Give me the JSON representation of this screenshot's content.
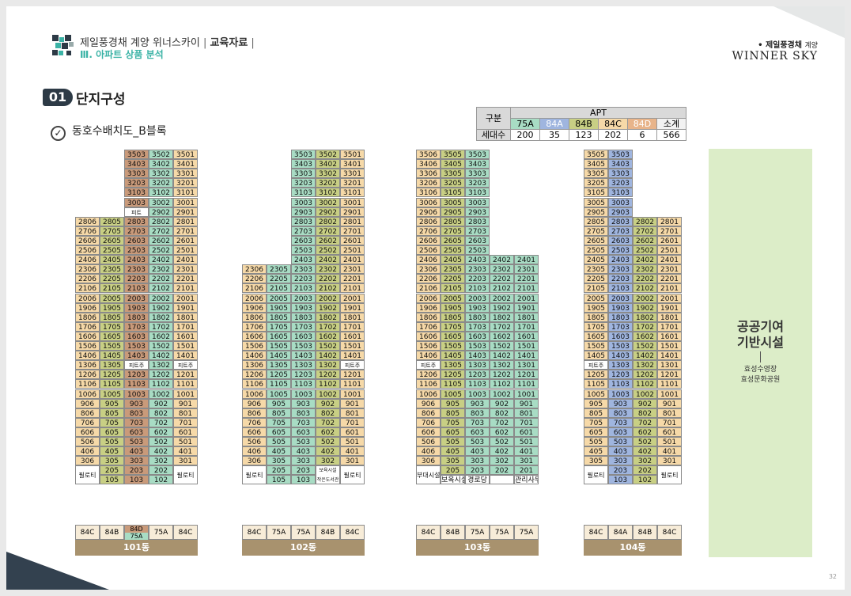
{
  "header": {
    "title": "제일풍경채 계양 위너스카이",
    "tag": "교육자료",
    "subtitle": "Ⅲ.  아파트 상품 분석",
    "brand_top": "제일풍경채",
    "brand_top_small": "계양",
    "brand_bottom": "WINNER SKY"
  },
  "section": {
    "num": "01",
    "title": "단지구성",
    "subtitle": "동호수배치도_B블록"
  },
  "summary": {
    "head_left": "구분",
    "group": "APT",
    "types": [
      "75A",
      "84A",
      "84B",
      "84C",
      "84D",
      "소계"
    ],
    "row_label": "세대수",
    "counts": [
      "200",
      "35",
      "123",
      "202",
      "6",
      "566"
    ]
  },
  "public_facility": {
    "title1": "공공기여",
    "title2": "기반시설",
    "line1": "효성수영장",
    "line2": "효성문화공원"
  },
  "page_number": "32",
  "colors": {
    "75A": "#a8dcc4",
    "84A": "#9fb5df",
    "84B": "#c8cf84",
    "84C": "#f6d9a8",
    "84D": "#c99a7a"
  },
  "buildings": [
    {
      "name": "101동",
      "types": [
        "84C",
        "84B",
        "84D",
        "75A",
        "84C"
      ],
      "type_cell3_sub": "75A",
      "specials": {
        "2904": "피트",
        "1304": "피트주",
        "1301": "피트주"
      },
      "pilotis": [
        "필로티",
        "",
        "",
        "",
        "필로티"
      ],
      "ground": [
        {
          "col": 1,
          "v": [
            "205",
            "105"
          ]
        },
        {
          "col": 2,
          "v": [
            "203",
            "103"
          ]
        },
        {
          "col": 3,
          "v": [
            "202",
            "102"
          ]
        }
      ]
    },
    {
      "name": "102동",
      "types": [
        "84C",
        "75A",
        "75A",
        "84B",
        "84C"
      ],
      "specials": {
        "1302": "피트주"
      },
      "pilotis": [
        "필로티",
        "",
        "",
        "",
        "필로티"
      ],
      "ground": [
        {
          "col": 1,
          "v": [
            "205",
            "105"
          ]
        },
        {
          "col": 2,
          "v": [
            "203",
            "103"
          ]
        }
      ],
      "ground_label": "보육시설 작은도서관"
    },
    {
      "name": "103동",
      "types": [
        "84C",
        "84B",
        "75A",
        "75A",
        "75A"
      ],
      "specials": {
        "1306": "피트주"
      },
      "pilotis": [
        "부대시설",
        "보육시설",
        "경로당",
        "",
        "관리사무실"
      ],
      "ground": [
        {
          "col": 1,
          "v": [
            "205"
          ]
        },
        {
          "col": 2,
          "v": [
            "203"
          ]
        },
        {
          "col": 3,
          "v": [
            "202"
          ]
        },
        {
          "col": 4,
          "v": [
            "201"
          ]
        }
      ]
    },
    {
      "name": "104동",
      "types": [
        "84C",
        "84A",
        "84B",
        "84C"
      ],
      "specials": {
        "1304": "피트주"
      },
      "pilotis": [
        "필로티",
        "",
        "",
        "필로티"
      ],
      "ground": [
        {
          "col": 1,
          "v": [
            "203",
            "103"
          ]
        },
        {
          "col": 2,
          "v": [
            "202",
            "102"
          ]
        }
      ]
    }
  ]
}
